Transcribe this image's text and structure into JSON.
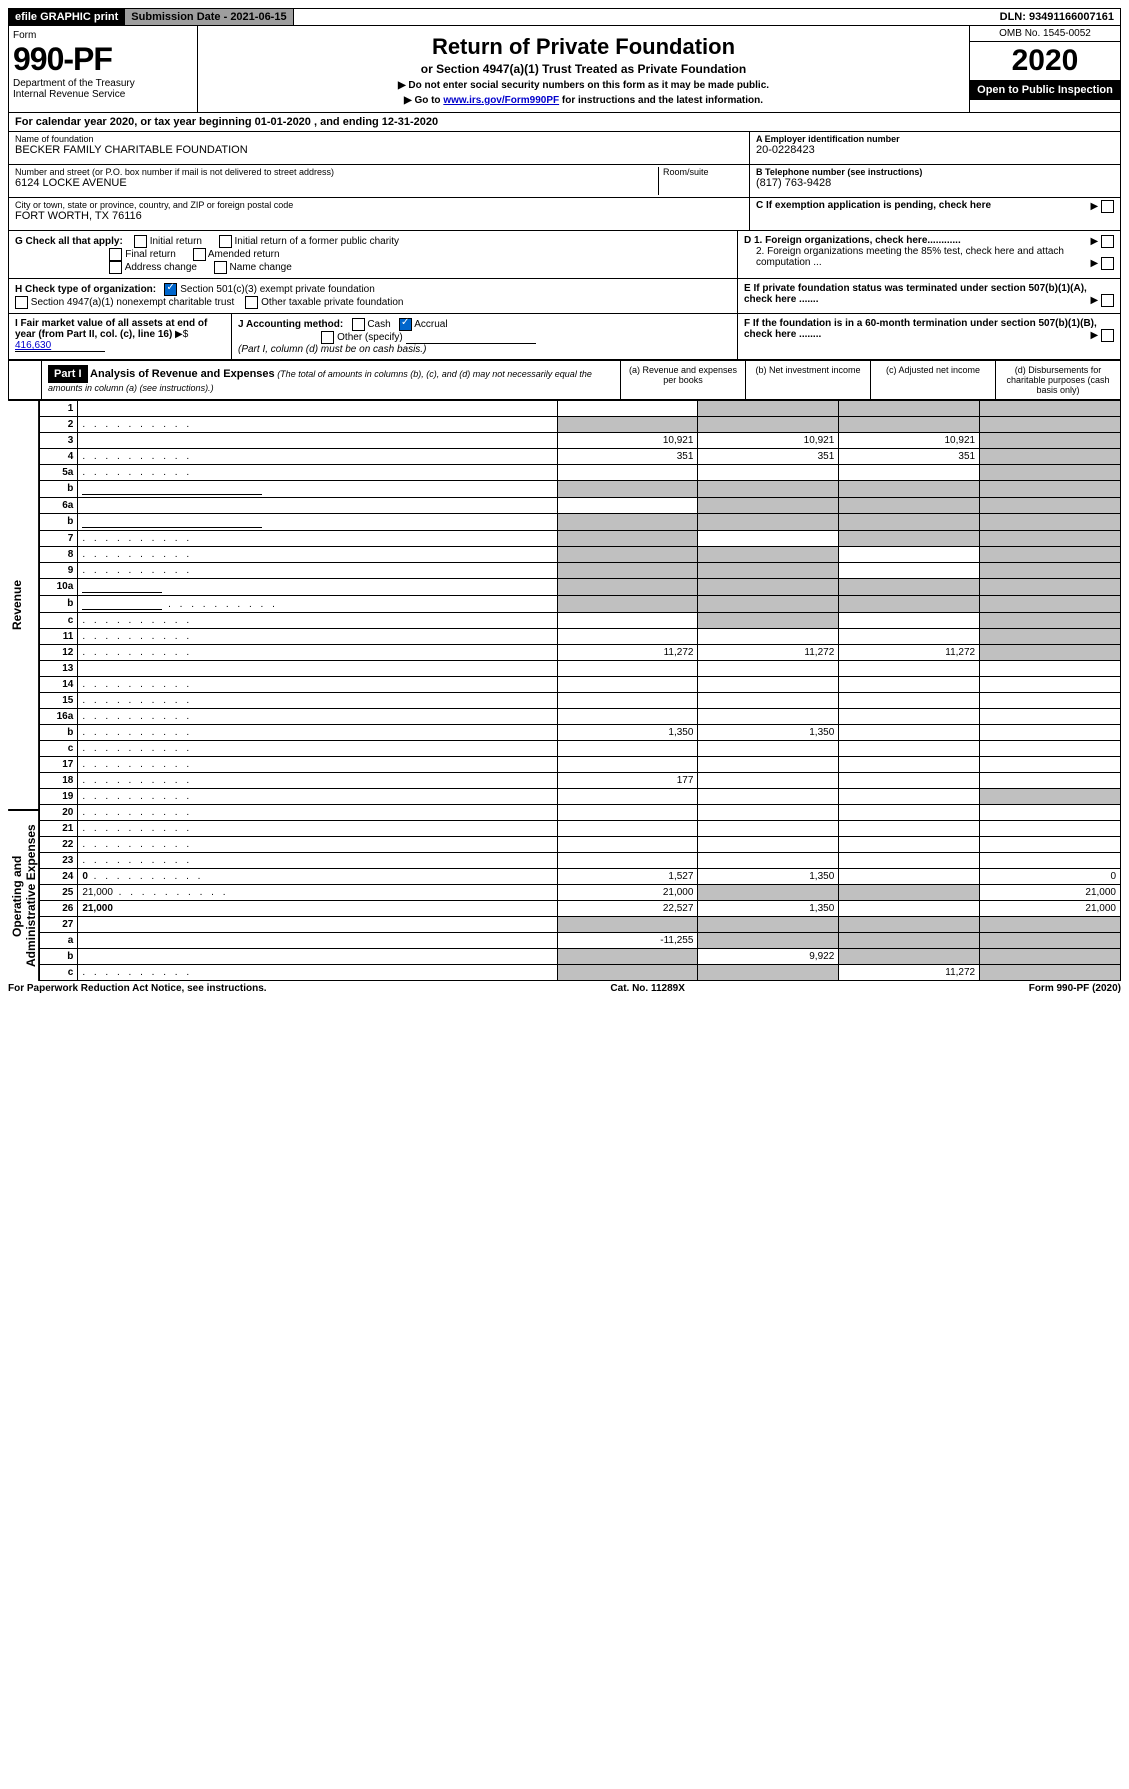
{
  "topbar": {
    "efile": "efile GRAPHIC print",
    "submission": "Submission Date - 2021-06-15",
    "dln": "DLN: 93491166007161"
  },
  "header": {
    "form_label": "Form",
    "form_no": "990-PF",
    "dept": "Department of the Treasury",
    "irs": "Internal Revenue Service",
    "title": "Return of Private Foundation",
    "subtitle": "or Section 4947(a)(1) Trust Treated as Private Foundation",
    "inst1": "▶ Do not enter social security numbers on this form as it may be made public.",
    "inst2_pre": "▶ Go to ",
    "inst2_link": "www.irs.gov/Form990PF",
    "inst2_post": " for instructions and the latest information.",
    "omb": "OMB No. 1545-0052",
    "year": "2020",
    "open": "Open to Public Inspection"
  },
  "cal_year": "For calendar year 2020, or tax year beginning 01-01-2020                        , and ending 12-31-2020",
  "info": {
    "name_label": "Name of foundation",
    "name": "BECKER FAMILY CHARITABLE FOUNDATION",
    "addr_label": "Number and street (or P.O. box number if mail is not delivered to street address)",
    "room_label": "Room/suite",
    "addr": "6124 LOCKE AVENUE",
    "city_label": "City or town, state or province, country, and ZIP or foreign postal code",
    "city": "FORT WORTH, TX  76116",
    "ein_label": "A Employer identification number",
    "ein": "20-0228423",
    "tel_label": "B Telephone number (see instructions)",
    "tel": "(817) 763-9428",
    "c_label": "C If exemption application is pending, check here",
    "d1": "D 1. Foreign organizations, check here............",
    "d2": "2. Foreign organizations meeting the 85% test, check here and attach computation ...",
    "e_label": "E  If private foundation status was terminated under section 507(b)(1)(A), check here .......",
    "f_label": "F  If the foundation is in a 60-month termination under section 507(b)(1)(B), check here ........"
  },
  "g": {
    "label": "G Check all that apply:",
    "initial": "Initial return",
    "initial_former": "Initial return of a former public charity",
    "final": "Final return",
    "amended": "Amended return",
    "addr_change": "Address change",
    "name_change": "Name change"
  },
  "h": {
    "label": "H Check type of organization:",
    "opt1": "Section 501(c)(3) exempt private foundation",
    "opt2": "Section 4947(a)(1) nonexempt charitable trust",
    "opt3": "Other taxable private foundation"
  },
  "i": {
    "label": "I Fair market value of all assets at end of year (from Part II, col. (c), line 16)",
    "value": "416,630"
  },
  "j": {
    "label": "J Accounting method:",
    "cash": "Cash",
    "accrual": "Accrual",
    "other": "Other (specify)",
    "note": "(Part I, column (d) must be on cash basis.)"
  },
  "part1": {
    "label": "Part I",
    "title": "Analysis of Revenue and Expenses",
    "note": "(The total of amounts in columns (b), (c), and (d) may not necessarily equal the amounts in column (a) (see instructions).)",
    "col_a": "(a)   Revenue and expenses per books",
    "col_b": "(b)   Net investment income",
    "col_c": "(c)   Adjusted net income",
    "col_d": "(d)   Disbursements for charitable purposes (cash basis only)"
  },
  "side": {
    "revenue": "Revenue",
    "expenses": "Operating and Administrative Expenses"
  },
  "rows": [
    {
      "n": "1",
      "d": "",
      "a": "",
      "b": "",
      "c": "",
      "sb": true,
      "sc": true,
      "sd": true
    },
    {
      "n": "2",
      "d": "",
      "dots": true,
      "a": "",
      "b": "",
      "c": "",
      "sa": true,
      "sb": true,
      "sc": true,
      "sd": true
    },
    {
      "n": "3",
      "d": "",
      "a": "10,921",
      "b": "10,921",
      "c": "10,921",
      "sd": true
    },
    {
      "n": "4",
      "d": "",
      "dots": true,
      "a": "351",
      "b": "351",
      "c": "351",
      "sd": true
    },
    {
      "n": "5a",
      "d": "",
      "dots": true,
      "a": "",
      "b": "",
      "c": "",
      "sd": true
    },
    {
      "n": "b",
      "d": "",
      "inline": true,
      "a": "",
      "b": "",
      "c": "",
      "sa": true,
      "sb": true,
      "sc": true,
      "sd": true
    },
    {
      "n": "6a",
      "d": "",
      "a": "",
      "b": "",
      "c": "",
      "sb": true,
      "sc": true,
      "sd": true
    },
    {
      "n": "b",
      "d": "",
      "inline": true,
      "a": "",
      "b": "",
      "c": "",
      "sa": true,
      "sb": true,
      "sc": true,
      "sd": true
    },
    {
      "n": "7",
      "d": "",
      "dots": true,
      "a": "",
      "b": "",
      "c": "",
      "sa": true,
      "sc": true,
      "sd": true
    },
    {
      "n": "8",
      "d": "",
      "dots": true,
      "a": "",
      "b": "",
      "c": "",
      "sa": true,
      "sb": true,
      "sd": true
    },
    {
      "n": "9",
      "d": "",
      "dots": true,
      "a": "",
      "b": "",
      "c": "",
      "sa": true,
      "sb": true,
      "sd": true
    },
    {
      "n": "10a",
      "d": "",
      "inline_short": true,
      "a": "",
      "b": "",
      "c": "",
      "sa": true,
      "sb": true,
      "sc": true,
      "sd": true
    },
    {
      "n": "b",
      "d": "",
      "dots": true,
      "inline_short": true,
      "a": "",
      "b": "",
      "c": "",
      "sa": true,
      "sb": true,
      "sc": true,
      "sd": true
    },
    {
      "n": "c",
      "d": "",
      "dots": true,
      "a": "",
      "b": "",
      "c": "",
      "sb": true,
      "sd": true
    },
    {
      "n": "11",
      "d": "",
      "dots": true,
      "a": "",
      "b": "",
      "c": "",
      "sd": true
    },
    {
      "n": "12",
      "d": "",
      "bold": true,
      "dots": true,
      "a": "11,272",
      "b": "11,272",
      "c": "11,272",
      "sd": true
    },
    {
      "n": "13",
      "d": "",
      "a": "",
      "b": "",
      "c": ""
    },
    {
      "n": "14",
      "d": "",
      "dots": true,
      "a": "",
      "b": "",
      "c": ""
    },
    {
      "n": "15",
      "d": "",
      "dots": true,
      "a": "",
      "b": "",
      "c": ""
    },
    {
      "n": "16a",
      "d": "",
      "dots": true,
      "a": "",
      "b": "",
      "c": ""
    },
    {
      "n": "b",
      "d": "",
      "dots": true,
      "a": "1,350",
      "b": "1,350",
      "c": ""
    },
    {
      "n": "c",
      "d": "",
      "dots": true,
      "a": "",
      "b": "",
      "c": ""
    },
    {
      "n": "17",
      "d": "",
      "dots": true,
      "a": "",
      "b": "",
      "c": ""
    },
    {
      "n": "18",
      "d": "",
      "dots": true,
      "a": "177",
      "b": "",
      "c": ""
    },
    {
      "n": "19",
      "d": "",
      "dots": true,
      "a": "",
      "b": "",
      "c": "",
      "sd": true
    },
    {
      "n": "20",
      "d": "",
      "dots": true,
      "a": "",
      "b": "",
      "c": ""
    },
    {
      "n": "21",
      "d": "",
      "dots": true,
      "a": "",
      "b": "",
      "c": ""
    },
    {
      "n": "22",
      "d": "",
      "dots": true,
      "a": "",
      "b": "",
      "c": ""
    },
    {
      "n": "23",
      "d": "",
      "dots": true,
      "a": "",
      "b": "",
      "c": ""
    },
    {
      "n": "24",
      "d": "0",
      "bold": true,
      "dots": true,
      "a": "1,527",
      "b": "1,350",
      "c": ""
    },
    {
      "n": "25",
      "d": "21,000",
      "dots": true,
      "a": "21,000",
      "b": "",
      "c": "",
      "sb": true,
      "sc": true
    },
    {
      "n": "26",
      "d": "21,000",
      "bold": true,
      "a": "22,527",
      "b": "1,350",
      "c": ""
    },
    {
      "n": "27",
      "d": "",
      "a": "",
      "b": "",
      "c": "",
      "sa": true,
      "sb": true,
      "sc": true,
      "sd": true
    },
    {
      "n": "a",
      "d": "",
      "bold": true,
      "a": "-11,255",
      "b": "",
      "c": "",
      "sb": true,
      "sc": true,
      "sd": true
    },
    {
      "n": "b",
      "d": "",
      "bold": true,
      "a": "",
      "b": "9,922",
      "c": "",
      "sa": true,
      "sc": true,
      "sd": true
    },
    {
      "n": "c",
      "d": "",
      "bold": true,
      "dots": true,
      "a": "",
      "b": "",
      "c": "11,272",
      "sa": true,
      "sb": true,
      "sd": true
    }
  ],
  "footer": {
    "left": "For Paperwork Reduction Act Notice, see instructions.",
    "center": "Cat. No. 11289X",
    "right": "Form 990-PF (2020)"
  }
}
